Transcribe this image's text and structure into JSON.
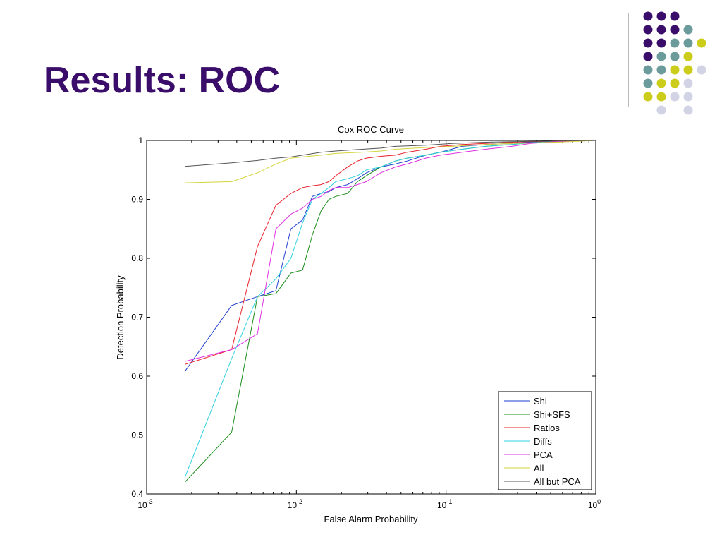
{
  "slide": {
    "title": "Results: ROC"
  },
  "decoration": {
    "dot_grid": [
      [
        "purple",
        "purple",
        "purple",
        null
      ],
      [
        "purple",
        "purple",
        "purple",
        "teal"
      ],
      [
        "purple",
        "purple",
        "teal",
        "teal",
        "yellow"
      ],
      [
        "purple",
        "teal",
        "teal",
        "yellow"
      ],
      [
        "teal",
        "teal",
        "yellow",
        "yellow",
        "lavender"
      ],
      [
        "teal",
        "yellow",
        "yellow",
        "lavender"
      ],
      [
        "yellow",
        "yellow",
        "lavender",
        "lavender"
      ],
      [
        null,
        "lavender",
        null,
        "lavender"
      ]
    ],
    "palette": {
      "purple": "#3a0d6a",
      "teal": "#6b9c9b",
      "yellow": "#cccc1a",
      "lavender": "#d3d3e6"
    }
  },
  "chart_data": {
    "type": "line",
    "title": "Cox ROC Curve",
    "xlabel": "False Alarm Probability",
    "ylabel": "Detection Probability",
    "xscale": "log",
    "xlim": [
      0.001,
      1
    ],
    "ylim": [
      0.4,
      1
    ],
    "xticks": [
      {
        "value": 0.001,
        "base": "10",
        "exp": "-3"
      },
      {
        "value": 0.01,
        "base": "10",
        "exp": "-2"
      },
      {
        "value": 0.1,
        "base": "10",
        "exp": "-1"
      },
      {
        "value": 1,
        "base": "10",
        "exp": "0"
      }
    ],
    "yticks": [
      {
        "value": 0.4,
        "label": "0.4"
      },
      {
        "value": 0.5,
        "label": "0.5"
      },
      {
        "value": 0.6,
        "label": "0.6"
      },
      {
        "value": 0.7,
        "label": "0.7"
      },
      {
        "value": 0.8,
        "label": "0.8"
      },
      {
        "value": 0.9,
        "label": "0.9"
      },
      {
        "value": 1,
        "label": "1"
      }
    ],
    "grid": false,
    "legend_position": "bottom-right",
    "series": [
      {
        "name": "Shi",
        "color": "#1f3fcf",
        "x": [
          0.0018,
          0.0037,
          0.0055,
          0.0073,
          0.0092,
          0.011,
          0.0128,
          0.0146,
          0.0165,
          0.0183,
          0.022,
          0.0256,
          0.0293,
          0.0366,
          0.0458,
          0.0549,
          0.0732,
          0.0916,
          0.128,
          0.183,
          0.275,
          0.366,
          0.55,
          1
        ],
        "y": [
          0.608,
          0.72,
          0.735,
          0.745,
          0.85,
          0.865,
          0.905,
          0.91,
          0.913,
          0.92,
          0.925,
          0.935,
          0.945,
          0.955,
          0.96,
          0.965,
          0.975,
          0.98,
          0.99,
          0.993,
          0.995,
          0.997,
          0.998,
          1.0
        ]
      },
      {
        "name": "Shi+SFS",
        "color": "#1a8c1a",
        "x": [
          0.0018,
          0.0037,
          0.0055,
          0.0073,
          0.0092,
          0.011,
          0.0128,
          0.0146,
          0.0165,
          0.0183,
          0.022,
          0.0256,
          0.0293,
          0.0366,
          0.0458,
          0.0549,
          0.0732,
          0.0916,
          0.128,
          0.183,
          0.275,
          0.366,
          0.55,
          1
        ],
        "y": [
          0.42,
          0.505,
          0.735,
          0.74,
          0.775,
          0.78,
          0.84,
          0.88,
          0.9,
          0.905,
          0.91,
          0.93,
          0.94,
          0.955,
          0.965,
          0.97,
          0.975,
          0.98,
          0.985,
          0.99,
          0.993,
          0.996,
          0.998,
          1.0
        ]
      },
      {
        "name": "Ratios",
        "color": "#e8202a",
        "x": [
          0.0018,
          0.0037,
          0.0055,
          0.0073,
          0.0092,
          0.011,
          0.0128,
          0.0146,
          0.0165,
          0.0183,
          0.022,
          0.0256,
          0.0293,
          0.0366,
          0.0458,
          0.0549,
          0.0732,
          0.0916,
          0.128,
          0.183,
          0.275,
          0.366,
          0.55,
          1
        ],
        "y": [
          0.62,
          0.645,
          0.82,
          0.89,
          0.91,
          0.92,
          0.923,
          0.925,
          0.93,
          0.94,
          0.955,
          0.965,
          0.97,
          0.973,
          0.975,
          0.98,
          0.985,
          0.99,
          0.993,
          0.995,
          0.997,
          0.998,
          0.999,
          1.0
        ]
      },
      {
        "name": "Diffs",
        "color": "#2fd0e0",
        "x": [
          0.0018,
          0.0037,
          0.0055,
          0.0073,
          0.0092,
          0.011,
          0.0128,
          0.0146,
          0.0165,
          0.0183,
          0.022,
          0.0256,
          0.0293,
          0.0366,
          0.0458,
          0.0549,
          0.0732,
          0.0916,
          0.128,
          0.183,
          0.275,
          0.366,
          0.55,
          1
        ],
        "y": [
          0.428,
          0.63,
          0.735,
          0.765,
          0.8,
          0.86,
          0.9,
          0.91,
          0.92,
          0.93,
          0.935,
          0.94,
          0.95,
          0.955,
          0.965,
          0.97,
          0.975,
          0.98,
          0.985,
          0.99,
          0.993,
          0.996,
          0.998,
          1.0
        ]
      },
      {
        "name": "PCA",
        "color": "#e030e0",
        "x": [
          0.0018,
          0.0037,
          0.0055,
          0.0073,
          0.0092,
          0.011,
          0.0128,
          0.0146,
          0.0165,
          0.0183,
          0.022,
          0.0256,
          0.0293,
          0.0366,
          0.0458,
          0.0549,
          0.0732,
          0.0916,
          0.128,
          0.183,
          0.275,
          0.366,
          0.55,
          1
        ],
        "y": [
          0.625,
          0.645,
          0.672,
          0.85,
          0.875,
          0.885,
          0.9,
          0.905,
          0.915,
          0.92,
          0.92,
          0.925,
          0.93,
          0.945,
          0.955,
          0.96,
          0.97,
          0.975,
          0.98,
          0.985,
          0.99,
          0.995,
          0.998,
          1.0
        ]
      },
      {
        "name": "All",
        "color": "#d4d43a",
        "x": [
          0.0018,
          0.0037,
          0.0055,
          0.0073,
          0.0092,
          0.011,
          0.0146,
          0.0183,
          0.0275,
          0.0366,
          0.0458,
          0.0732,
          0.11,
          0.183,
          0.275,
          0.55,
          1
        ],
        "y": [
          0.928,
          0.93,
          0.945,
          0.96,
          0.97,
          0.972,
          0.975,
          0.978,
          0.98,
          0.982,
          0.985,
          0.988,
          0.99,
          0.993,
          0.995,
          0.997,
          1.0
        ]
      },
      {
        "name": "All but PCA",
        "color": "#555555",
        "x": [
          0.0018,
          0.0037,
          0.0055,
          0.0073,
          0.0092,
          0.011,
          0.0146,
          0.0183,
          0.0275,
          0.0366,
          0.0458,
          0.0732,
          0.11,
          0.183,
          0.275,
          0.55,
          1
        ],
        "y": [
          0.956,
          0.962,
          0.966,
          0.97,
          0.972,
          0.975,
          0.98,
          0.982,
          0.985,
          0.987,
          0.99,
          0.992,
          0.995,
          0.997,
          0.998,
          0.999,
          1.0
        ]
      }
    ]
  }
}
